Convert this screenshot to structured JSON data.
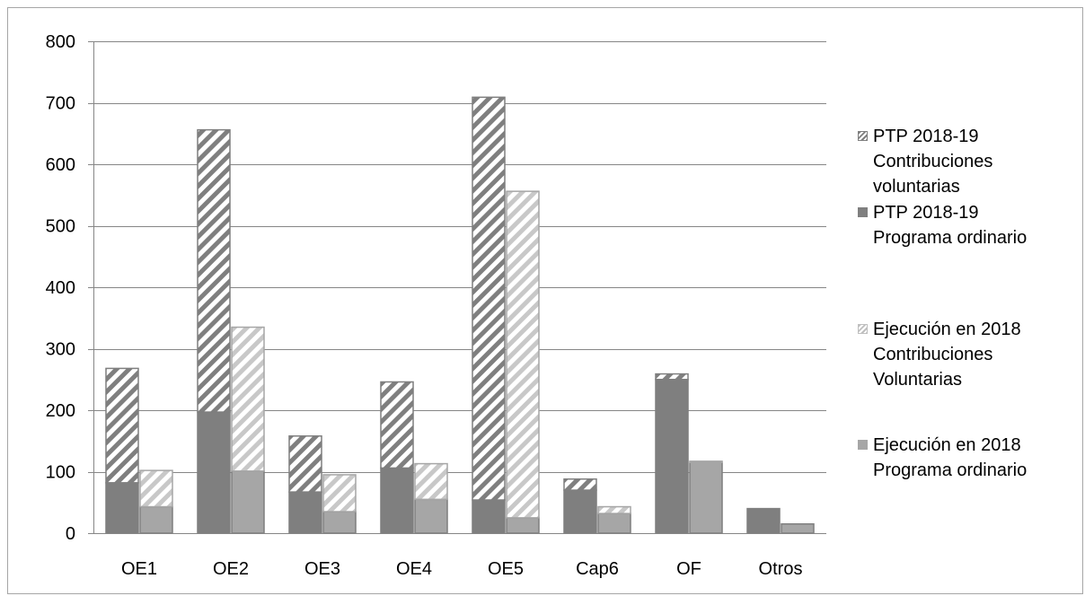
{
  "chart_data": {
    "type": "bar",
    "stacked": true,
    "grouped": true,
    "categories": [
      "OE1",
      "OE2",
      "OE3",
      "OE4",
      "OE5",
      "Cap6",
      "OF",
      "Otros"
    ],
    "ylim": [
      0,
      800
    ],
    "yticks": [
      0,
      100,
      200,
      300,
      400,
      500,
      600,
      700,
      800
    ],
    "ytick_labels": [
      "0",
      "100",
      "200",
      "300",
      "400",
      "500",
      "600",
      "700",
      "800"
    ],
    "grid": true,
    "legend_position": "right",
    "groups": [
      {
        "id": "ptp",
        "series": [
          {
            "name": "PTP 2018-19 Programa ordinario",
            "label_lines": [
              "PTP 2018-19",
              "Programa ordinario"
            ],
            "color": "#7f7f7f",
            "pattern": "solid",
            "values": [
              82,
              197,
              67,
              106,
              54,
              70,
              250,
              40
            ]
          },
          {
            "name": "PTP 2018-19 Contribuciones voluntarias",
            "label_lines": [
              "PTP 2018-19",
              "Contribuciones",
              "voluntarias"
            ],
            "color": "#7f7f7f",
            "pattern": "hatch-dark",
            "values": [
              186,
              459,
              91,
              140,
              655,
              18,
              9,
              0
            ]
          }
        ]
      },
      {
        "id": "ejec",
        "series": [
          {
            "name": "Ejecución en 2018 Programa ordinario",
            "label_lines": [
              "Ejecución en 2018",
              "Programa ordinario"
            ],
            "color": "#a6a6a6",
            "pattern": "solid",
            "values": [
              43,
              101,
              35,
              55,
              25,
              32,
              115,
              15
            ]
          },
          {
            "name": "Ejecución en 2018 Contribuciones Voluntarias",
            "label_lines": [
              "Ejecución en 2018",
              "Contribuciones",
              "Voluntarias"
            ],
            "color": "#bfbfbf",
            "pattern": "hatch-light",
            "values": [
              59,
              234,
              60,
              58,
              531,
              11,
              2,
              0
            ]
          }
        ]
      }
    ],
    "legend_order": [
      "PTP 2018-19 Contribuciones voluntarias",
      "PTP 2018-19 Programa ordinario",
      "Ejecución en 2018 Contribuciones Voluntarias",
      "Ejecución en 2018 Programa ordinario"
    ],
    "colors": {
      "axis": "#868686",
      "grid": "#868686",
      "dark_bar": "#7f7f7f",
      "light_bar": "#a6a6a6",
      "light_hatch": "#bfbfbf"
    }
  }
}
